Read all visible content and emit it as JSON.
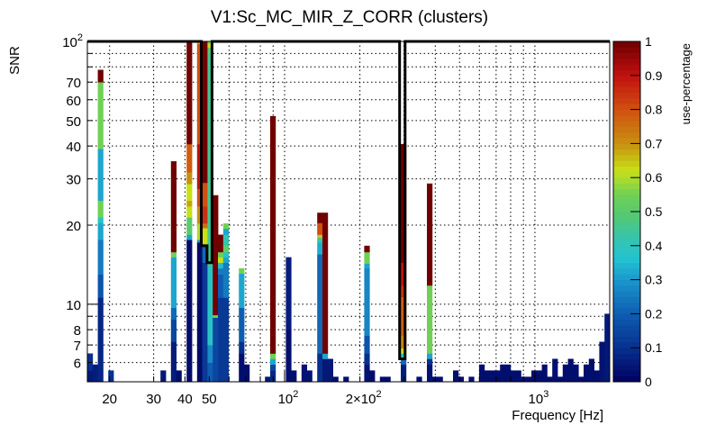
{
  "chart_data": {
    "type": "heatmap",
    "title": "V1:Sc_MC_MIR_Z_CORR (clusters)",
    "xlabel": "Frequency [Hz]",
    "ylabel": "SNR",
    "zlabel": "use-percentage",
    "xscale": "log",
    "yscale": "log",
    "xlim": [
      16.3,
      1990
    ],
    "ylim": [
      5.07,
      100
    ],
    "zlim": [
      0,
      1
    ],
    "nbins_x": 100,
    "grid": true,
    "x_ticklabels": [
      {
        "value": 20,
        "label": "20"
      },
      {
        "value": 30,
        "label": "30"
      },
      {
        "value": 40,
        "label": "40"
      },
      {
        "value": 50,
        "label": "50"
      },
      {
        "value": 100,
        "label": "10",
        "sup": "2"
      },
      {
        "value": 200,
        "label": "2×10",
        "sup": "2"
      },
      {
        "value": 1000,
        "label": "10",
        "sup": "3"
      }
    ],
    "y_ticklabels": [
      {
        "value": 100,
        "label": "10",
        "sup": "2"
      },
      {
        "value": 70,
        "label": "70"
      },
      {
        "value": 60,
        "label": "60"
      },
      {
        "value": 50,
        "label": "50"
      },
      {
        "value": 40,
        "label": "40"
      },
      {
        "value": 30,
        "label": "30"
      },
      {
        "value": 20,
        "label": "20"
      },
      {
        "value": 10,
        "label": "10"
      },
      {
        "value": 8,
        "label": "8"
      },
      {
        "value": 7,
        "label": "7"
      },
      {
        "value": 6,
        "label": "6"
      }
    ],
    "z_ticklabels": [
      "0",
      "0.1",
      "0.2",
      "0.3",
      "0.4",
      "0.5",
      "0.6",
      "0.7",
      "0.8",
      "0.9",
      "1"
    ],
    "palette": [
      [
        0.0,
        "#000060"
      ],
      [
        0.1,
        "#07308e"
      ],
      [
        0.2,
        "#0e5db2"
      ],
      [
        0.3,
        "#1a98cc"
      ],
      [
        0.36,
        "#22c2d0"
      ],
      [
        0.42,
        "#36c4b0"
      ],
      [
        0.48,
        "#50c878"
      ],
      [
        0.55,
        "#70d055"
      ],
      [
        0.62,
        "#c8e018"
      ],
      [
        0.7,
        "#c89010"
      ],
      [
        0.8,
        "#d05010"
      ],
      [
        0.9,
        "#c01010"
      ],
      [
        1.0,
        "#700000"
      ]
    ],
    "columns": [
      {
        "bin": 0,
        "cells": [
          [
            5.6,
            0.05
          ],
          [
            6.5,
            0.1
          ]
        ]
      },
      {
        "bin": 1,
        "cells": [
          [
            5.9,
            0.06
          ]
        ]
      },
      {
        "bin": 2,
        "cells": [
          [
            10.6,
            0.08
          ],
          [
            13,
            0.18
          ],
          [
            17.6,
            0.25
          ],
          [
            20.4,
            0.32
          ],
          [
            21.4,
            0.38
          ],
          [
            24.8,
            0.55
          ],
          [
            39,
            0.32
          ],
          [
            70,
            0.55
          ],
          [
            78,
            1.0
          ]
        ]
      },
      {
        "bin": 4,
        "cells": [
          [
            5.6,
            0.1
          ]
        ]
      },
      {
        "bin": 14,
        "cells": [
          [
            5.6,
            0.05
          ]
        ]
      },
      {
        "bin": 16,
        "cells": [
          [
            7.2,
            0.06
          ],
          [
            8.75,
            0.15
          ],
          [
            9.7,
            0.22
          ],
          [
            15.1,
            0.32
          ],
          [
            15.8,
            0.55
          ],
          [
            35,
            1.0
          ]
        ]
      },
      {
        "bin": 17,
        "cells": [
          [
            5.6,
            0.03
          ]
        ]
      },
      {
        "bin": 19,
        "cells": [
          [
            17.6,
            0.02
          ],
          [
            18.4,
            0.32
          ],
          [
            21.4,
            0.5
          ],
          [
            23.6,
            0.62
          ],
          [
            24.8,
            0.68
          ],
          [
            28.7,
            0.62
          ],
          [
            31.8,
            0.7
          ],
          [
            40.7,
            0.78
          ],
          [
            100,
            1.0
          ]
        ]
      },
      {
        "bin": 21,
        "cells": [
          [
            17.2,
            0.02
          ],
          [
            17.6,
            0.3
          ],
          [
            20.3,
            0.6
          ],
          [
            23.6,
            0.7
          ],
          [
            27.5,
            0.8
          ],
          [
            40.7,
            0.9
          ],
          [
            98,
            0.8
          ],
          [
            100,
            0.66
          ]
        ]
      },
      {
        "bin": 22,
        "cells": [
          [
            14.4,
            0.12
          ],
          [
            16.7,
            0.22
          ],
          [
            19.5,
            0.62
          ],
          [
            20.3,
            0.75
          ],
          [
            23.6,
            0.85
          ],
          [
            29,
            0.8
          ],
          [
            100,
            1.0
          ]
        ]
      },
      {
        "bin": 23,
        "cells": [
          [
            6,
            0.2
          ],
          [
            7,
            0.28
          ],
          [
            14,
            0.38
          ],
          [
            90,
            0.45
          ],
          [
            95,
            0.5
          ],
          [
            98,
            0.62
          ],
          [
            100,
            0.55
          ]
        ]
      },
      {
        "bin": 24,
        "cells": [
          [
            8.9,
            0.15
          ],
          [
            9.1,
            0.55
          ],
          [
            26,
            1.0
          ]
        ]
      },
      {
        "bin": 25,
        "cells": [
          [
            10.6,
            0.12
          ],
          [
            13,
            0.2
          ],
          [
            13.7,
            0.25
          ],
          [
            14.4,
            0.35
          ],
          [
            15.1,
            0.62
          ],
          [
            15.8,
            0.55
          ],
          [
            18.4,
            1.0
          ]
        ]
      },
      {
        "bin": 26,
        "cells": [
          [
            10.6,
            0.12
          ],
          [
            14.4,
            0.25
          ],
          [
            15.1,
            0.32
          ],
          [
            15.8,
            0.4
          ],
          [
            16.7,
            0.52
          ],
          [
            18.4,
            0.42
          ],
          [
            19.4,
            0.32
          ],
          [
            20.3,
            0.55
          ]
        ]
      },
      {
        "bin": 29,
        "cells": [
          [
            6.5,
            0.03
          ],
          [
            7.2,
            0.1
          ],
          [
            9.7,
            0.2
          ],
          [
            13.1,
            0.32
          ],
          [
            13.7,
            0.55
          ]
        ]
      },
      {
        "bin": 30,
        "cells": [
          [
            5.9,
            0.03
          ]
        ]
      },
      {
        "bin": 34,
        "cells": [
          [
            5.3,
            0.05
          ]
        ]
      },
      {
        "bin": 35,
        "cells": [
          [
            5.6,
            0.08
          ],
          [
            5.9,
            0.15
          ],
          [
            6.2,
            0.32
          ],
          [
            6.5,
            0.55
          ],
          [
            52,
            1.0
          ]
        ]
      },
      {
        "bin": 38,
        "cells": [
          [
            8,
            0.03
          ],
          [
            15.1,
            0.06
          ]
        ]
      },
      {
        "bin": 39,
        "cells": [
          [
            5.6,
            0.03
          ]
        ]
      },
      {
        "bin": 41,
        "cells": [
          [
            5.9,
            0.04
          ]
        ]
      },
      {
        "bin": 42,
        "cells": [
          [
            5.6,
            0.04
          ]
        ]
      },
      {
        "bin": 44,
        "cells": [
          [
            6.5,
            0.1
          ],
          [
            15.5,
            0.22
          ],
          [
            17.2,
            0.33
          ],
          [
            17.9,
            0.42
          ],
          [
            18.4,
            0.65
          ],
          [
            20.4,
            0.8
          ],
          [
            22.3,
            1.0
          ]
        ]
      },
      {
        "bin": 45,
        "cells": [
          [
            6.2,
            0.05
          ],
          [
            6.5,
            0.32
          ],
          [
            22.3,
            1.0
          ]
        ]
      },
      {
        "bin": 46,
        "cells": [
          [
            6.2,
            0.05
          ]
        ]
      },
      {
        "bin": 47,
        "cells": [
          [
            5.3,
            0.03
          ]
        ]
      },
      {
        "bin": 49,
        "cells": [
          [
            5.3,
            0.03
          ]
        ]
      },
      {
        "bin": 53,
        "cells": [
          [
            5.9,
            0.04
          ],
          [
            6.5,
            0.1
          ],
          [
            7.6,
            0.18
          ],
          [
            13.7,
            0.27
          ],
          [
            14.3,
            0.32
          ],
          [
            15.8,
            0.55
          ],
          [
            16.7,
            1.0
          ]
        ]
      },
      {
        "bin": 54,
        "cells": [
          [
            5.6,
            0.03
          ]
        ]
      },
      {
        "bin": 56,
        "cells": [
          [
            5.3,
            0.03
          ]
        ]
      },
      {
        "bin": 57,
        "cells": [
          [
            5.3,
            0.03
          ]
        ]
      },
      {
        "bin": 60,
        "cells": [
          [
            5.9,
            0.06
          ],
          [
            6.2,
            0.22
          ],
          [
            6.5,
            0.4
          ],
          [
            6.8,
            0.62
          ],
          [
            7.6,
            0.72
          ],
          [
            10.65,
            0.78
          ],
          [
            11.8,
            0.85
          ],
          [
            14.4,
            0.9
          ],
          [
            40.7,
            1.0
          ]
        ]
      },
      {
        "bin": 63,
        "cells": [
          [
            5.3,
            0.03
          ]
        ]
      },
      {
        "bin": 65,
        "cells": [
          [
            5.9,
            0.04
          ],
          [
            6.2,
            0.1
          ],
          [
            6.5,
            0.32
          ],
          [
            11.8,
            0.55
          ],
          [
            28.8,
            1.0
          ]
        ]
      },
      {
        "bin": 66,
        "cells": [
          [
            5.3,
            0.03
          ]
        ]
      },
      {
        "bin": 67,
        "cells": [
          [
            5.3,
            0.03
          ]
        ]
      },
      {
        "bin": 70,
        "cells": [
          [
            5.6,
            0.03
          ]
        ]
      },
      {
        "bin": 71,
        "cells": [
          [
            5.3,
            0.03
          ]
        ]
      },
      {
        "bin": 73,
        "cells": [
          [
            5.3,
            0.03
          ]
        ]
      },
      {
        "bin": 75,
        "cells": [
          [
            5.9,
            0.03
          ]
        ]
      },
      {
        "bin": 76,
        "cells": [
          [
            5.6,
            0.03
          ]
        ]
      },
      {
        "bin": 77,
        "cells": [
          [
            5.6,
            0.03
          ]
        ]
      },
      {
        "bin": 78,
        "cells": [
          [
            5.6,
            0.03
          ]
        ]
      },
      {
        "bin": 79,
        "cells": [
          [
            5.9,
            0.03
          ]
        ]
      },
      {
        "bin": 80,
        "cells": [
          [
            5.9,
            0.03
          ]
        ]
      },
      {
        "bin": 81,
        "cells": [
          [
            5.6,
            0.03
          ]
        ]
      },
      {
        "bin": 82,
        "cells": [
          [
            5.6,
            0.03
          ]
        ]
      },
      {
        "bin": 83,
        "cells": [
          [
            5.3,
            0.03
          ]
        ]
      },
      {
        "bin": 84,
        "cells": [
          [
            5.3,
            0.03
          ]
        ]
      },
      {
        "bin": 85,
        "cells": [
          [
            5.6,
            0.03
          ]
        ]
      },
      {
        "bin": 86,
        "cells": [
          [
            5.6,
            0.03
          ]
        ]
      },
      {
        "bin": 87,
        "cells": [
          [
            5.9,
            0.03
          ]
        ]
      },
      {
        "bin": 88,
        "cells": [
          [
            5.3,
            0.03
          ]
        ]
      },
      {
        "bin": 89,
        "cells": [
          [
            6.2,
            0.03
          ]
        ]
      },
      {
        "bin": 90,
        "cells": [
          [
            5.3,
            0.03
          ]
        ]
      },
      {
        "bin": 91,
        "cells": [
          [
            5.9,
            0.03
          ]
        ]
      },
      {
        "bin": 92,
        "cells": [
          [
            6.2,
            0.03
          ]
        ]
      },
      {
        "bin": 93,
        "cells": [
          [
            5.9,
            0.03
          ]
        ]
      },
      {
        "bin": 94,
        "cells": [
          [
            5.3,
            0.03
          ]
        ]
      },
      {
        "bin": 95,
        "cells": [
          [
            5.9,
            0.03
          ]
        ]
      },
      {
        "bin": 96,
        "cells": [
          [
            6.2,
            0.03
          ]
        ]
      },
      {
        "bin": 97,
        "cells": [
          [
            5.6,
            0.03
          ]
        ]
      },
      {
        "bin": 98,
        "cells": [
          [
            7.2,
            0.04
          ]
        ]
      },
      {
        "bin": 99,
        "cells": [
          [
            9.2,
            0.05
          ]
        ]
      }
    ],
    "threshold_contour": [
      [
        16.3,
        100
      ],
      [
        46.5,
        100
      ],
      [
        46.5,
        16.7
      ],
      [
        49,
        16.7
      ],
      [
        49,
        14.4
      ],
      [
        51.3,
        14.4
      ],
      [
        51.3,
        100
      ],
      [
        288,
        100
      ],
      [
        288,
        6.2
      ],
      [
        303,
        6.2
      ],
      [
        303,
        100
      ],
      [
        1990,
        100
      ]
    ]
  }
}
